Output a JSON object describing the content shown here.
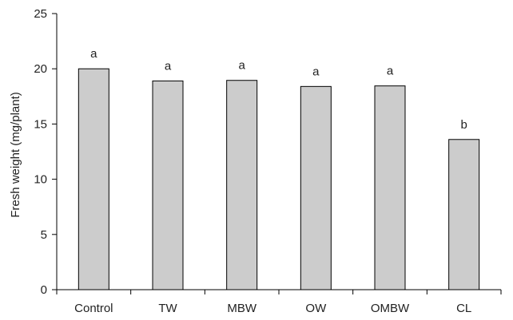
{
  "chart_data": {
    "type": "bar",
    "categories": [
      "Control",
      "TW",
      "MBW",
      "OW",
      "OMBW",
      "CL"
    ],
    "values": [
      20.0,
      18.9,
      18.95,
      18.4,
      18.45,
      13.6
    ],
    "significance_labels": [
      "a",
      "a",
      "a",
      "a",
      "a",
      "b"
    ],
    "title": "",
    "xlabel": "",
    "ylabel": "Fresh weight (mg/plant)",
    "ylim": [
      0,
      25
    ],
    "yticks": [
      0,
      5,
      10,
      15,
      20,
      25
    ],
    "grid": false,
    "legend": "none",
    "bar_color": "#cccccc",
    "bar_edge_color": "#000000"
  }
}
